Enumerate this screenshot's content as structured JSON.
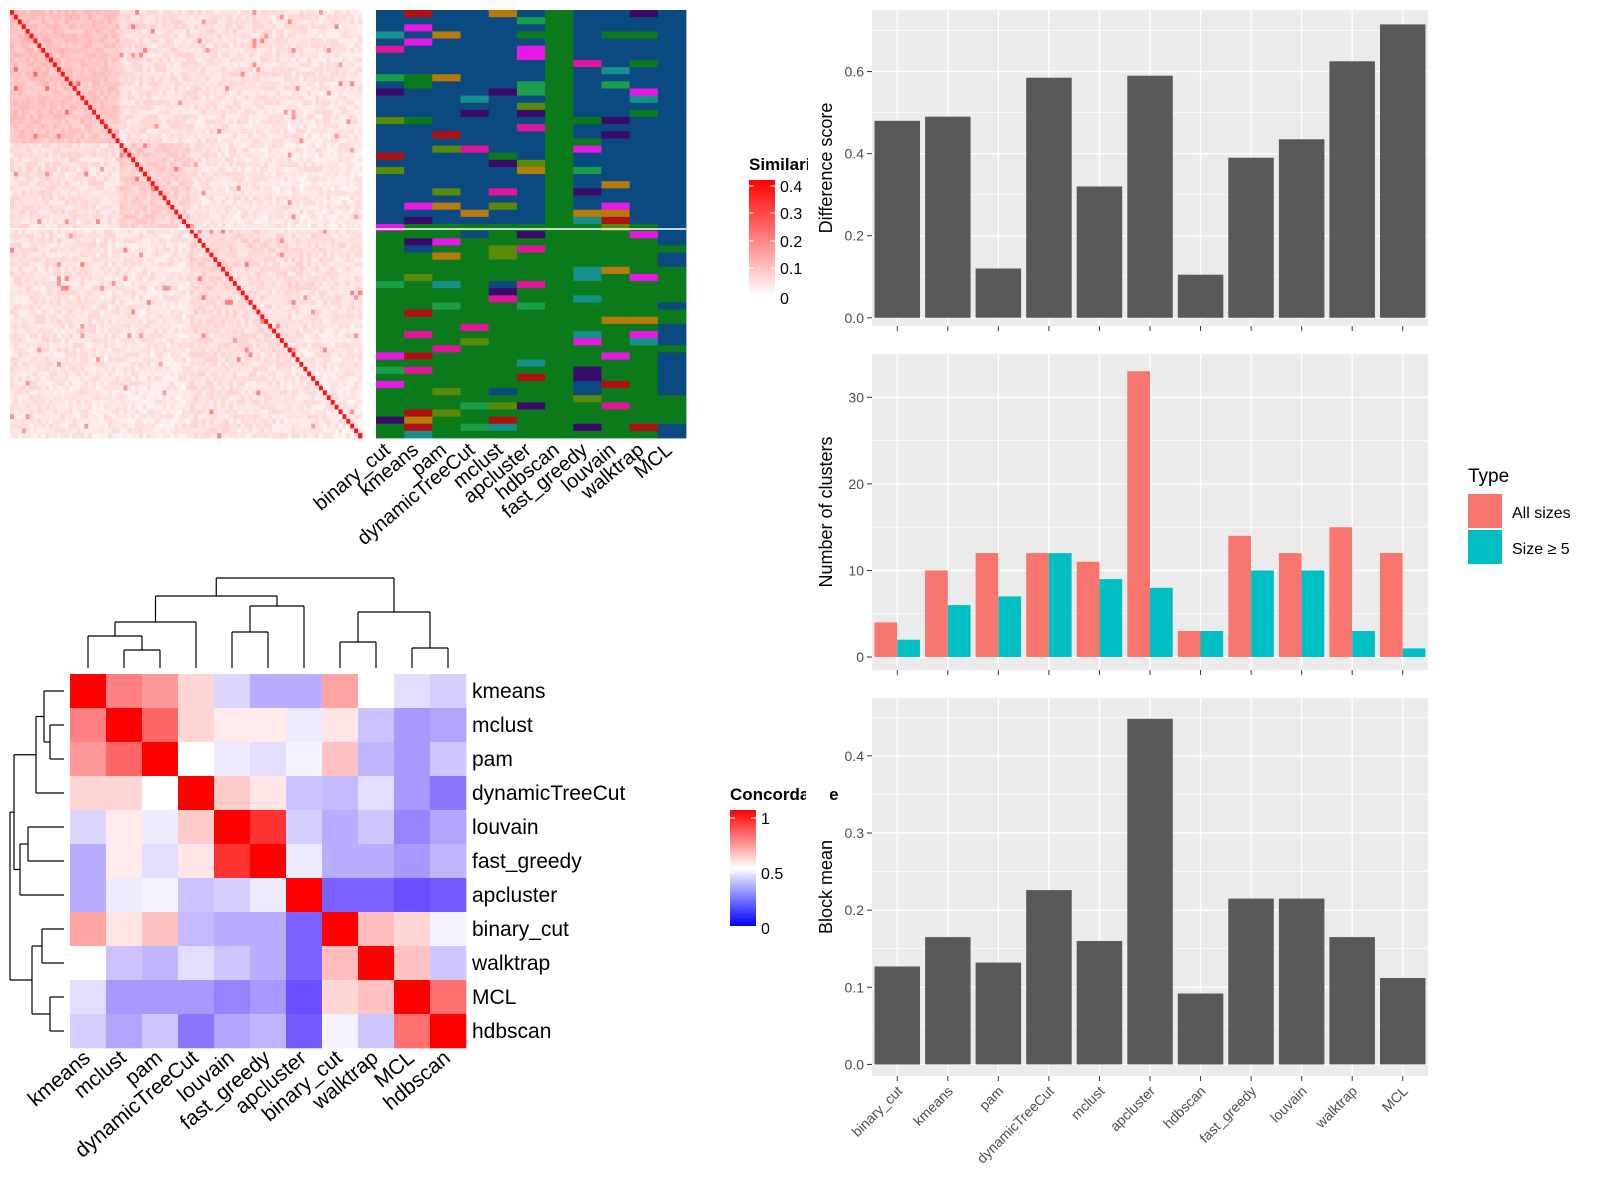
{
  "colors": {
    "panel_bg": "#ebebeb",
    "grid": "#ffffff",
    "bar_dark": "#595959",
    "all_sizes": "#f8766d",
    "size_ge_5": "#00bfc4",
    "cluster_palette": [
      "#0a4a80",
      "#0b7a1a",
      "#1a9e4a",
      "#e619e6",
      "#b01010",
      "#b87a0a",
      "#3a0a6a",
      "#5a8a0a",
      "#16908a",
      "#e0159a"
    ]
  },
  "heatmap_top": {
    "legend_title": "Similarity",
    "legend_ticks": [
      "0.4",
      "0.3",
      "0.2",
      "0.1",
      "0"
    ],
    "method_labels": [
      "binary_cut",
      "kmeans",
      "pam",
      "dynamicTreeCut",
      "mclust",
      "apcluster",
      "hdbscan",
      "fast_greedy",
      "louvain",
      "walktrap",
      "MCL"
    ]
  },
  "concordance": {
    "legend_title": "Concordance",
    "legend_ticks": [
      "1",
      "0.5",
      "0"
    ],
    "methods": [
      "kmeans",
      "mclust",
      "pam",
      "dynamicTreeCut",
      "louvain",
      "fast_greedy",
      "apcluster",
      "binary_cut",
      "walktrap",
      "MCL",
      "hdbscan"
    ],
    "matrix": [
      [
        1.0,
        0.75,
        0.7,
        0.58,
        0.4,
        0.3,
        0.3,
        0.68,
        0.5,
        0.42,
        0.38
      ],
      [
        0.75,
        1.0,
        0.8,
        0.58,
        0.54,
        0.54,
        0.45,
        0.55,
        0.35,
        0.25,
        0.28
      ],
      [
        0.7,
        0.8,
        1.0,
        0.5,
        0.45,
        0.42,
        0.47,
        0.62,
        0.32,
        0.25,
        0.36
      ],
      [
        0.58,
        0.58,
        0.5,
        1.0,
        0.6,
        0.55,
        0.35,
        0.33,
        0.42,
        0.25,
        0.17
      ],
      [
        0.4,
        0.54,
        0.45,
        0.6,
        1.0,
        0.9,
        0.38,
        0.3,
        0.36,
        0.2,
        0.28
      ],
      [
        0.3,
        0.54,
        0.42,
        0.55,
        0.9,
        1.0,
        0.45,
        0.3,
        0.3,
        0.25,
        0.32
      ],
      [
        0.3,
        0.45,
        0.47,
        0.35,
        0.38,
        0.45,
        1.0,
        0.12,
        0.12,
        0.07,
        0.1
      ],
      [
        0.68,
        0.55,
        0.62,
        0.33,
        0.3,
        0.3,
        0.12,
        1.0,
        0.63,
        0.58,
        0.47
      ],
      [
        0.5,
        0.35,
        0.32,
        0.42,
        0.36,
        0.3,
        0.12,
        0.63,
        1.0,
        0.62,
        0.36
      ],
      [
        0.42,
        0.25,
        0.25,
        0.25,
        0.2,
        0.25,
        0.07,
        0.58,
        0.62,
        1.0,
        0.78
      ],
      [
        0.38,
        0.28,
        0.36,
        0.17,
        0.28,
        0.32,
        0.1,
        0.47,
        0.36,
        0.78,
        1.0
      ]
    ]
  },
  "chart_data": [
    {
      "type": "bar",
      "categories": [
        "binary_cut",
        "kmeans",
        "pam",
        "dynamicTreeCut",
        "mclust",
        "apcluster",
        "hdbscan",
        "fast_greedy",
        "louvain",
        "walktrap",
        "MCL"
      ],
      "values": [
        0.48,
        0.49,
        0.12,
        0.585,
        0.32,
        0.59,
        0.105,
        0.39,
        0.435,
        0.625,
        0.715
      ],
      "xlabel": "",
      "ylabel": "Difference score",
      "yticks": [
        "0.0",
        "0.2",
        "0.4",
        "0.6"
      ],
      "ylim": [
        -0.02,
        0.75
      ]
    },
    {
      "type": "bar",
      "categories": [
        "binary_cut",
        "kmeans",
        "pam",
        "dynamicTreeCut",
        "mclust",
        "apcluster",
        "hdbscan",
        "fast_greedy",
        "louvain",
        "walktrap",
        "MCL"
      ],
      "series": [
        {
          "name": "All sizes",
          "values": [
            4,
            10,
            12,
            12,
            11,
            33,
            3,
            14,
            12,
            15,
            12
          ]
        },
        {
          "name": "Size ≥ 5",
          "values": [
            2,
            6,
            7,
            12,
            9,
            8,
            3,
            10,
            10,
            3,
            1
          ]
        }
      ],
      "xlabel": "",
      "ylabel": "Number of clusters",
      "yticks": [
        "0",
        "10",
        "20",
        "30"
      ],
      "ylim": [
        -1.5,
        35
      ],
      "legend_title": "Type",
      "legend_position": "right"
    },
    {
      "type": "bar",
      "categories": [
        "binary_cut",
        "kmeans",
        "pam",
        "dynamicTreeCut",
        "mclust",
        "apcluster",
        "hdbscan",
        "fast_greedy",
        "louvain",
        "walktrap",
        "MCL"
      ],
      "values": [
        0.127,
        0.165,
        0.132,
        0.226,
        0.16,
        0.448,
        0.092,
        0.215,
        0.215,
        0.165,
        0.112
      ],
      "xlabel": "",
      "ylabel": "Block mean",
      "yticks": [
        "0.0",
        "0.1",
        "0.2",
        "0.3",
        "0.4"
      ],
      "ylim": [
        -0.015,
        0.475
      ]
    }
  ]
}
